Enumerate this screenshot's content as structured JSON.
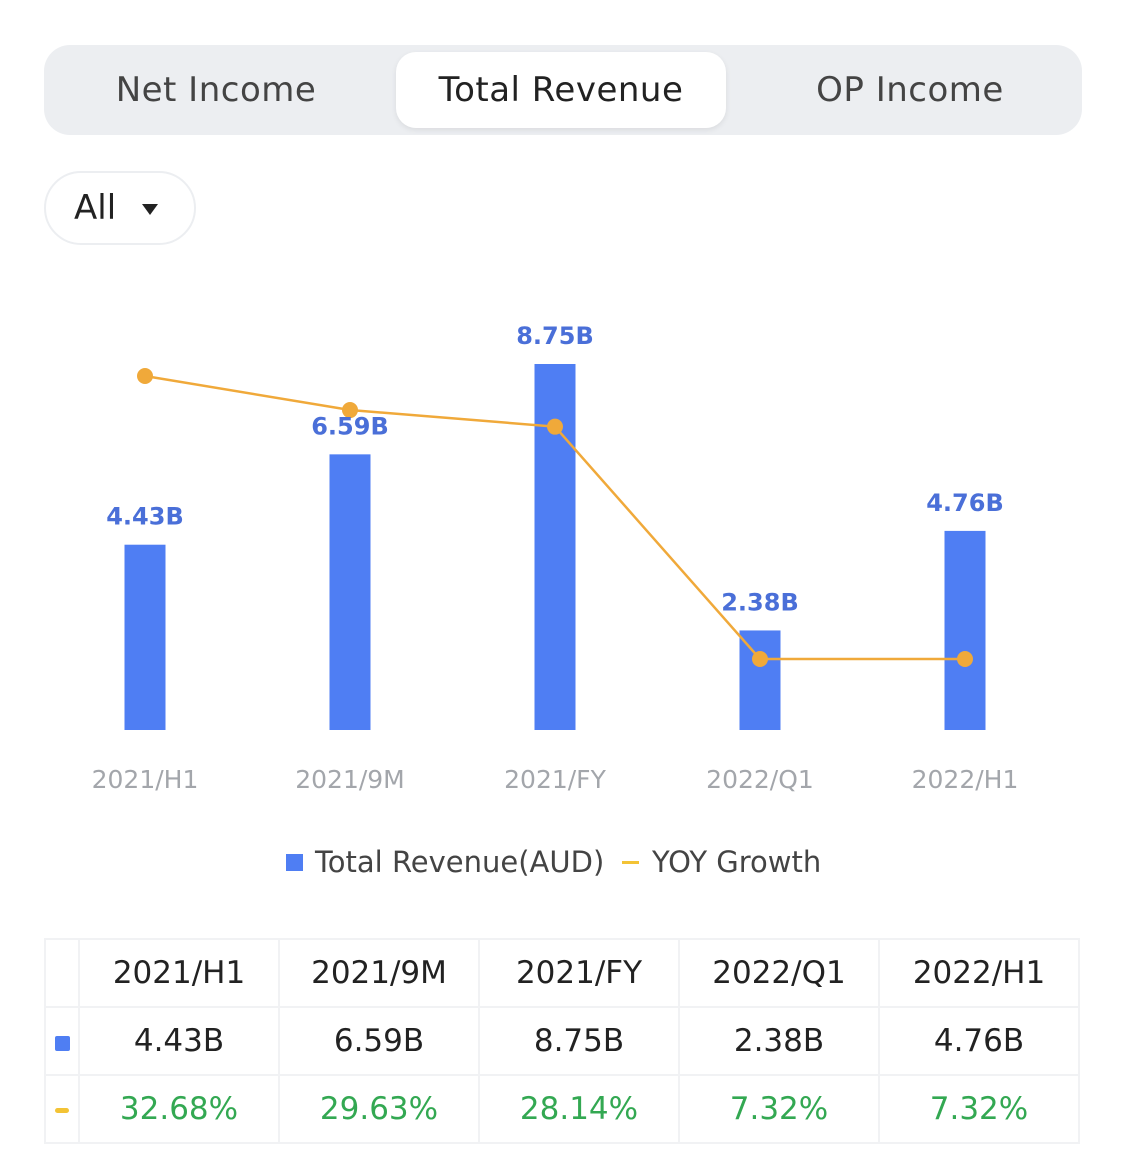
{
  "tabs": [
    {
      "label": "Net Income"
    },
    {
      "label": "Total Revenue"
    },
    {
      "label": "OP Income"
    }
  ],
  "filter": {
    "label": "All"
  },
  "colors": {
    "bar": "#4f7ef3",
    "line": "#f0a93a",
    "pct_text": "#33a852",
    "bar_label": "#4a6fd8"
  },
  "chart_data": {
    "type": "bar",
    "categories": [
      "2021/H1",
      "2021/9M",
      "2021/FY",
      "2022/Q1",
      "2022/H1"
    ],
    "series": [
      {
        "name": "Total Revenue(AUD)",
        "type": "bar",
        "values": [
          4.43,
          6.59,
          8.75,
          2.38,
          4.76
        ],
        "labels": [
          "4.43B",
          "6.59B",
          "8.75B",
          "2.38B",
          "4.76B"
        ]
      },
      {
        "name": "YOY Growth",
        "type": "line",
        "values": [
          32.68,
          29.63,
          28.14,
          7.32,
          7.32
        ]
      }
    ],
    "legend_position": "bottom"
  },
  "legend": {
    "bar_label": "Total Revenue(AUD)",
    "line_label": "YOY Growth"
  },
  "table": {
    "headers": [
      "2021/H1",
      "2021/9M",
      "2021/FY",
      "2022/Q1",
      "2022/H1"
    ],
    "revenue": [
      "4.43B",
      "6.59B",
      "8.75B",
      "2.38B",
      "4.76B"
    ],
    "growth": [
      "32.68%",
      "29.63%",
      "28.14%",
      "7.32%",
      "7.32%"
    ]
  }
}
